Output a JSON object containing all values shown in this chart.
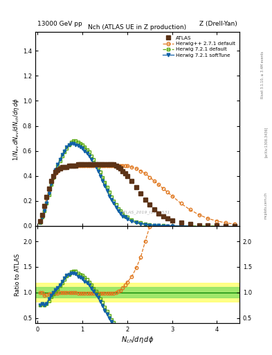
{
  "title_top_left": "13000 GeV pp",
  "title_top_right": "Z (Drell-Yan)",
  "plot_title": "Nch (ATLAS UE in Z production)",
  "ylabel_main": "$1/N_{ev}\\,dN_{ev}/dN_{ch}/d\\eta\\,d\\phi$",
  "ylabel_ratio": "Ratio to ATLAS",
  "xlabel": "$N_{ch}/d\\eta\\,d\\phi$",
  "watermark": "ATLAS_2019_I1736531",
  "ylim_main": [
    0.0,
    1.55
  ],
  "ylim_ratio": [
    0.4,
    2.3
  ],
  "xlim": [
    -0.05,
    4.5
  ],
  "atlas_color": "#5c3317",
  "herwig271_color": "#e07820",
  "herwig721d_color": "#5aaa10",
  "herwig721s_color": "#1060a8",
  "yellow_band": [
    0.82,
    1.18
  ],
  "green_band": [
    0.9,
    1.1
  ],
  "atlas_x": [
    0.05,
    0.1,
    0.15,
    0.2,
    0.25,
    0.3,
    0.35,
    0.4,
    0.45,
    0.5,
    0.55,
    0.6,
    0.65,
    0.7,
    0.75,
    0.8,
    0.85,
    0.9,
    0.95,
    1.0,
    1.05,
    1.1,
    1.15,
    1.2,
    1.25,
    1.3,
    1.35,
    1.4,
    1.45,
    1.5,
    1.55,
    1.6,
    1.65,
    1.7,
    1.75,
    1.8,
    1.85,
    1.9,
    1.95,
    2.0,
    2.1,
    2.2,
    2.3,
    2.4,
    2.5,
    2.6,
    2.7,
    2.8,
    2.9,
    3.0,
    3.2,
    3.4,
    3.6,
    3.8,
    4.0,
    4.2,
    4.4
  ],
  "atlas_y": [
    0.04,
    0.09,
    0.16,
    0.23,
    0.3,
    0.36,
    0.4,
    0.43,
    0.45,
    0.46,
    0.47,
    0.47,
    0.47,
    0.48,
    0.48,
    0.48,
    0.48,
    0.49,
    0.49,
    0.49,
    0.49,
    0.49,
    0.49,
    0.49,
    0.49,
    0.49,
    0.49,
    0.49,
    0.49,
    0.49,
    0.49,
    0.49,
    0.49,
    0.49,
    0.48,
    0.47,
    0.46,
    0.44,
    0.42,
    0.4,
    0.36,
    0.31,
    0.26,
    0.21,
    0.17,
    0.13,
    0.1,
    0.08,
    0.06,
    0.045,
    0.025,
    0.014,
    0.008,
    0.005,
    0.003,
    0.002,
    0.001
  ],
  "h271_x": [
    0.05,
    0.1,
    0.15,
    0.2,
    0.25,
    0.3,
    0.35,
    0.4,
    0.45,
    0.5,
    0.55,
    0.6,
    0.65,
    0.7,
    0.75,
    0.8,
    0.85,
    0.9,
    0.95,
    1.0,
    1.05,
    1.1,
    1.15,
    1.2,
    1.25,
    1.3,
    1.35,
    1.4,
    1.45,
    1.5,
    1.55,
    1.6,
    1.65,
    1.7,
    1.75,
    1.8,
    1.85,
    1.9,
    1.95,
    2.0,
    2.1,
    2.2,
    2.3,
    2.4,
    2.5,
    2.6,
    2.7,
    2.8,
    2.9,
    3.0,
    3.2,
    3.4,
    3.6,
    3.8,
    4.0,
    4.2,
    4.4
  ],
  "h271_y": [
    0.04,
    0.09,
    0.15,
    0.22,
    0.29,
    0.35,
    0.39,
    0.42,
    0.44,
    0.46,
    0.47,
    0.47,
    0.47,
    0.48,
    0.48,
    0.48,
    0.48,
    0.48,
    0.48,
    0.48,
    0.48,
    0.48,
    0.48,
    0.48,
    0.48,
    0.48,
    0.48,
    0.48,
    0.48,
    0.48,
    0.48,
    0.48,
    0.48,
    0.48,
    0.48,
    0.48,
    0.48,
    0.48,
    0.48,
    0.48,
    0.47,
    0.46,
    0.44,
    0.42,
    0.39,
    0.36,
    0.33,
    0.3,
    0.27,
    0.24,
    0.18,
    0.13,
    0.09,
    0.06,
    0.04,
    0.025,
    0.015
  ],
  "h721d_x": [
    0.05,
    0.1,
    0.15,
    0.2,
    0.25,
    0.3,
    0.35,
    0.4,
    0.45,
    0.5,
    0.55,
    0.6,
    0.65,
    0.7,
    0.75,
    0.8,
    0.85,
    0.9,
    0.95,
    1.0,
    1.05,
    1.1,
    1.15,
    1.2,
    1.25,
    1.3,
    1.35,
    1.4,
    1.45,
    1.5,
    1.55,
    1.6,
    1.65,
    1.7,
    1.75,
    1.8,
    1.85,
    1.9,
    1.95,
    2.0,
    2.1,
    2.2,
    2.3,
    2.4,
    2.5,
    2.6,
    2.7,
    2.8,
    2.9,
    3.0,
    3.2,
    3.4,
    3.6,
    3.8,
    4.0
  ],
  "h721d_y": [
    0.03,
    0.07,
    0.12,
    0.18,
    0.25,
    0.33,
    0.39,
    0.44,
    0.48,
    0.52,
    0.56,
    0.59,
    0.62,
    0.65,
    0.67,
    0.68,
    0.68,
    0.67,
    0.66,
    0.65,
    0.63,
    0.61,
    0.59,
    0.56,
    0.53,
    0.5,
    0.47,
    0.43,
    0.39,
    0.35,
    0.31,
    0.27,
    0.23,
    0.2,
    0.17,
    0.14,
    0.12,
    0.1,
    0.08,
    0.07,
    0.05,
    0.035,
    0.025,
    0.017,
    0.011,
    0.007,
    0.005,
    0.003,
    0.002,
    0.0015,
    0.001,
    0.0005,
    0.0003,
    0.0002,
    0.0001
  ],
  "h721s_x": [
    0.05,
    0.1,
    0.15,
    0.2,
    0.25,
    0.3,
    0.35,
    0.4,
    0.45,
    0.5,
    0.55,
    0.6,
    0.65,
    0.7,
    0.75,
    0.8,
    0.85,
    0.9,
    0.95,
    1.0,
    1.05,
    1.1,
    1.15,
    1.2,
    1.25,
    1.3,
    1.35,
    1.4,
    1.45,
    1.5,
    1.55,
    1.6,
    1.65,
    1.7,
    1.75,
    1.8,
    1.85,
    1.9,
    1.95,
    2.0,
    2.1,
    2.2,
    2.3,
    2.4,
    2.5,
    2.6,
    2.7,
    2.8,
    2.9,
    3.0,
    3.2,
    3.4
  ],
  "h721s_y": [
    0.03,
    0.07,
    0.12,
    0.18,
    0.26,
    0.34,
    0.4,
    0.45,
    0.49,
    0.53,
    0.57,
    0.6,
    0.63,
    0.65,
    0.66,
    0.66,
    0.65,
    0.64,
    0.63,
    0.62,
    0.6,
    0.58,
    0.56,
    0.53,
    0.5,
    0.47,
    0.44,
    0.4,
    0.36,
    0.32,
    0.28,
    0.24,
    0.21,
    0.18,
    0.15,
    0.12,
    0.1,
    0.08,
    0.07,
    0.055,
    0.038,
    0.026,
    0.018,
    0.012,
    0.008,
    0.005,
    0.003,
    0.002,
    0.0015,
    0.001,
    0.0005,
    0.0003
  ],
  "ratio_h271_x": [
    0.05,
    0.1,
    0.15,
    0.2,
    0.25,
    0.3,
    0.35,
    0.4,
    0.45,
    0.5,
    0.55,
    0.6,
    0.65,
    0.7,
    0.75,
    0.8,
    0.85,
    0.9,
    0.95,
    1.0,
    1.05,
    1.1,
    1.15,
    1.2,
    1.25,
    1.3,
    1.35,
    1.4,
    1.45,
    1.5,
    1.55,
    1.6,
    1.65,
    1.7,
    1.75,
    1.8,
    1.85,
    1.9,
    1.95,
    2.0,
    2.1,
    2.2,
    2.3,
    2.4,
    2.5,
    2.6,
    2.7,
    2.8,
    2.9,
    3.0,
    3.2,
    3.4,
    3.6,
    3.8,
    4.0,
    4.2,
    4.4
  ],
  "ratio_h271_y": [
    1.0,
    1.0,
    0.94,
    0.96,
    0.97,
    0.97,
    0.98,
    0.98,
    0.98,
    1.0,
    1.0,
    1.0,
    1.0,
    1.0,
    1.0,
    1.0,
    1.0,
    0.98,
    0.98,
    0.98,
    0.98,
    0.98,
    0.98,
    0.98,
    0.98,
    0.98,
    0.98,
    0.98,
    0.98,
    0.98,
    0.98,
    0.98,
    0.98,
    0.98,
    1.0,
    1.02,
    1.04,
    1.09,
    1.14,
    1.2,
    1.31,
    1.48,
    1.69,
    2.0,
    2.29,
    2.77,
    3.3,
    3.75,
    4.5,
    5.3,
    7.2,
    9.3,
    11.25,
    12.0,
    13.3,
    12.5,
    15.0
  ],
  "ratio_h721d_x": [
    0.05,
    0.1,
    0.15,
    0.2,
    0.25,
    0.3,
    0.35,
    0.4,
    0.45,
    0.5,
    0.55,
    0.6,
    0.65,
    0.7,
    0.75,
    0.8,
    0.85,
    0.9,
    0.95,
    1.0,
    1.05,
    1.1,
    1.15,
    1.2,
    1.25,
    1.3,
    1.35,
    1.4,
    1.45,
    1.5,
    1.55,
    1.6,
    1.65,
    1.7,
    1.75,
    1.8,
    1.85,
    1.9,
    1.95,
    2.0,
    2.1,
    2.2,
    2.3,
    2.4,
    2.5,
    2.6,
    2.7,
    2.8,
    2.9,
    3.0,
    3.2,
    3.4,
    3.6,
    3.8,
    4.0
  ],
  "ratio_h721d_y": [
    0.75,
    0.78,
    0.75,
    0.78,
    0.83,
    0.92,
    0.975,
    1.02,
    1.07,
    1.13,
    1.19,
    1.26,
    1.32,
    1.35,
    1.4,
    1.42,
    1.42,
    1.37,
    1.35,
    1.33,
    1.29,
    1.25,
    1.2,
    1.14,
    1.08,
    1.02,
    0.96,
    0.88,
    0.8,
    0.71,
    0.63,
    0.55,
    0.47,
    0.41,
    0.35,
    0.3,
    0.26,
    0.23,
    0.19,
    0.175,
    0.139,
    0.113,
    0.096,
    0.081,
    0.065,
    0.054,
    0.05,
    0.0375,
    0.033,
    0.033,
    0.04,
    0.036,
    0.0375,
    0.04,
    0.1
  ],
  "ratio_h721s_x": [
    0.05,
    0.1,
    0.15,
    0.2,
    0.25,
    0.3,
    0.35,
    0.4,
    0.45,
    0.5,
    0.55,
    0.6,
    0.65,
    0.7,
    0.75,
    0.8,
    0.85,
    0.9,
    0.95,
    1.0,
    1.05,
    1.1,
    1.15,
    1.2,
    1.25,
    1.3,
    1.35,
    1.4,
    1.45,
    1.5,
    1.55,
    1.6,
    1.65,
    1.7,
    1.75,
    1.8,
    1.85,
    1.9,
    1.95,
    2.0,
    2.1,
    2.2,
    2.3,
    2.4,
    2.5,
    2.6,
    2.7,
    2.8,
    2.9,
    3.0,
    3.2,
    3.4
  ],
  "ratio_h721s_y": [
    0.75,
    0.78,
    0.75,
    0.78,
    0.87,
    0.94,
    1.0,
    1.05,
    1.09,
    1.15,
    1.21,
    1.28,
    1.34,
    1.35,
    1.375,
    1.375,
    1.36,
    1.31,
    1.29,
    1.27,
    1.22,
    1.18,
    1.14,
    1.08,
    1.02,
    0.96,
    0.9,
    0.82,
    0.74,
    0.65,
    0.57,
    0.49,
    0.43,
    0.37,
    0.31,
    0.25,
    0.21,
    0.18,
    0.14,
    0.11,
    0.075,
    0.053,
    0.037,
    0.024,
    0.016,
    0.01,
    0.006,
    0.0025,
    0.0015,
    0.001,
    0.0005,
    0.0003
  ]
}
